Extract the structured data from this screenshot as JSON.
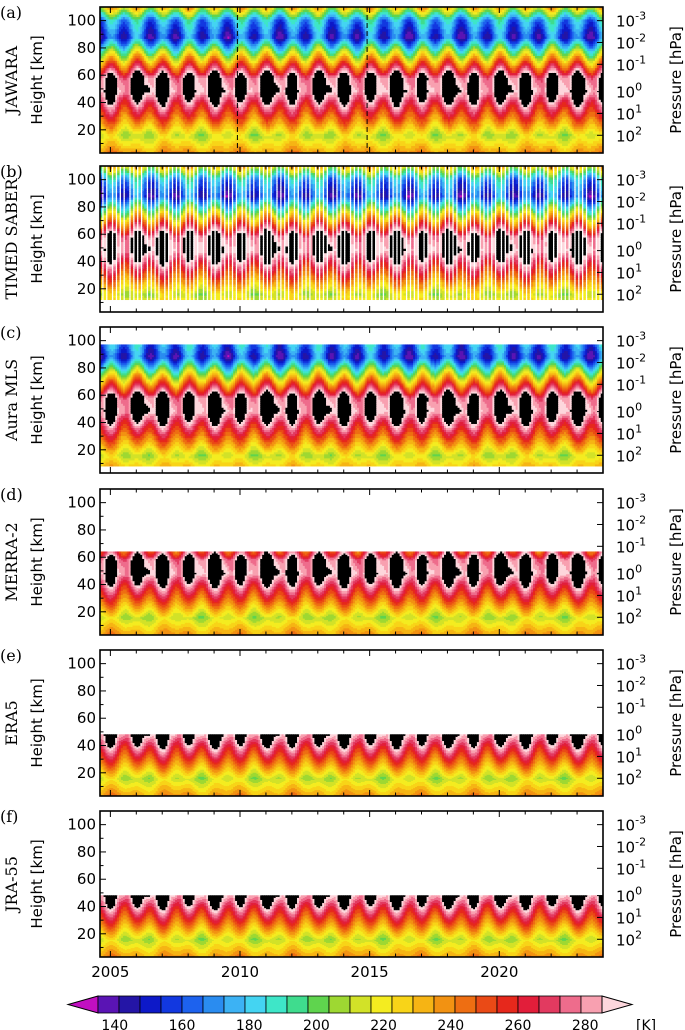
{
  "chart_data": {
    "type": "heatmap",
    "x_range": [
      2004.6,
      2024.0
    ],
    "x_ticks": [
      2005,
      2010,
      2015,
      2020
    ],
    "x_tick_labels": [
      "2005",
      "2010",
      "2015",
      "2020"
    ],
    "y_label": "Height [km]",
    "y2_label": "Pressure [hPa]",
    "y_range": [
      3,
      110
    ],
    "y_ticks": [
      20,
      40,
      60,
      80,
      100
    ],
    "y_tick_labels": [
      "20",
      "40",
      "60",
      "80",
      "100"
    ],
    "y2_ticks": [
      {
        "height": 100,
        "mantissa": "10",
        "exp": "-3"
      },
      {
        "height": 84,
        "mantissa": "10",
        "exp": "-2"
      },
      {
        "height": 68,
        "mantissa": "10",
        "exp": "-1"
      },
      {
        "height": 48,
        "mantissa": "10",
        "exp": "0"
      },
      {
        "height": 32,
        "mantissa": "10",
        "exp": "1"
      },
      {
        "height": 16,
        "mantissa": "10",
        "exp": "2"
      }
    ],
    "panels": [
      {
        "letter": "(a)",
        "name": "JAWARA",
        "top_km": 110,
        "bottom_km": 3,
        "dashed_years": [
          2009.9,
          2014.9
        ],
        "sampling": "continuous"
      },
      {
        "letter": "(b)",
        "name": "TIMED SABER",
        "top_km": 110,
        "bottom_km": 12,
        "dashed_years": [],
        "sampling": "yaw-cycles"
      },
      {
        "letter": "(c)",
        "name": "Aura MLS",
        "top_km": 97,
        "bottom_km": 8,
        "dashed_years": [],
        "sampling": "continuous"
      },
      {
        "letter": "(d)",
        "name": "MERRA-2",
        "top_km": 64,
        "bottom_km": 3,
        "dashed_years": [],
        "sampling": "continuous"
      },
      {
        "letter": "(e)",
        "name": "ERA5",
        "top_km": 48,
        "bottom_km": 3,
        "dashed_years": [],
        "sampling": "continuous"
      },
      {
        "letter": "(f)",
        "name": "JRA-55",
        "top_km": 48,
        "bottom_km": 3,
        "dashed_years": [],
        "sampling": "continuous"
      }
    ],
    "colorbar": {
      "unit": "[K]",
      "levels": [
        130,
        135,
        140,
        145,
        150,
        155,
        160,
        165,
        170,
        175,
        180,
        185,
        190,
        195,
        200,
        205,
        210,
        215,
        220,
        225,
        230,
        235,
        240,
        245,
        250,
        255,
        260,
        265,
        270,
        275,
        280,
        285,
        290
      ],
      "tick_values": [
        140,
        160,
        180,
        200,
        220,
        240,
        260,
        280
      ],
      "tick_labels": [
        "140",
        "160",
        "180",
        "200",
        "220",
        "240",
        "260",
        "280"
      ],
      "colors": [
        "#c10fc1",
        "#5a14b4",
        "#2415a6",
        "#0d19c8",
        "#1238e0",
        "#1d62ee",
        "#2a8cf0",
        "#3cb2f4",
        "#44d4f2",
        "#3ee6c8",
        "#3fdc8e",
        "#5fd44e",
        "#9ed832",
        "#d2e228",
        "#f4ec20",
        "#f8d418",
        "#f6b414",
        "#f29212",
        "#ee6e12",
        "#ea4a16",
        "#e6281c",
        "#e21e3a",
        "#e23a60",
        "#ee6c8c",
        "#f8a0b0",
        "#fdd6dc"
      ]
    }
  }
}
